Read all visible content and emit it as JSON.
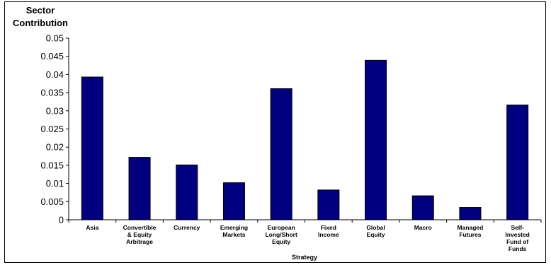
{
  "chart_data": {
    "type": "bar",
    "title": "",
    "ylabel": "Sector Contribution",
    "ylabel_lines": [
      "Sector",
      "Contribution"
    ],
    "xlabel": "Strategy",
    "ylim": [
      0,
      0.05
    ],
    "yticks": [
      "0",
      "0.005",
      "0.01",
      "0.015",
      "0.02",
      "0.025",
      "0.03",
      "0.035",
      "0.04",
      "0.045",
      "0.05"
    ],
    "categories": [
      "Asia",
      "Convertible & Equity Arbitrage",
      "Currency",
      "Emerging Markets",
      "European Long/Short Equity",
      "Fixed Income",
      "Global Equity",
      "Macro",
      "Managed Futures",
      "Self-Invested Fund of Funds"
    ],
    "category_lines": [
      [
        "Asia"
      ],
      [
        "Convertible",
        "& Equity",
        "Arbitrage"
      ],
      [
        "Currency"
      ],
      [
        "Emerging",
        "Markets"
      ],
      [
        "European",
        "Long/Short",
        "Equity"
      ],
      [
        "Fixed",
        "Income"
      ],
      [
        "Global",
        "Equity"
      ],
      [
        "Macro"
      ],
      [
        "Managed",
        "Futures"
      ],
      [
        "Self-",
        "Invested",
        "Fund of",
        "Funds"
      ]
    ],
    "values": [
      0.0393,
      0.0172,
      0.0151,
      0.0102,
      0.0361,
      0.0082,
      0.0439,
      0.0066,
      0.0034,
      0.0316
    ],
    "grid": false,
    "bar_color": "#000080"
  }
}
